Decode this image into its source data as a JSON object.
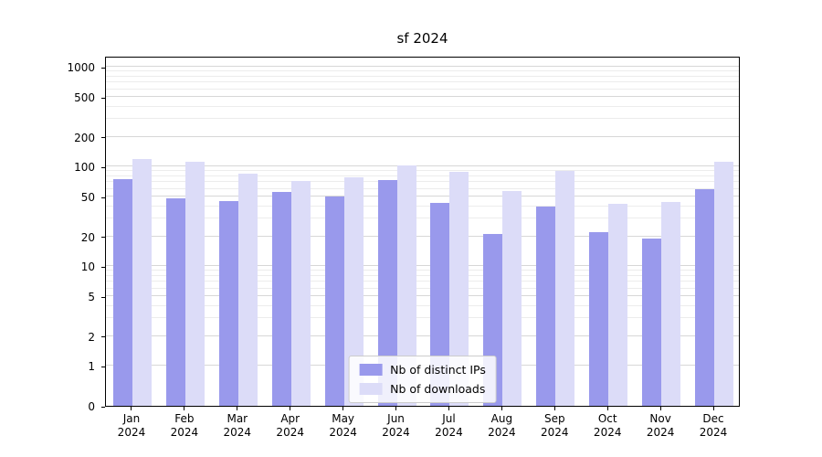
{
  "title": "sf 2024",
  "chart_data": {
    "type": "bar",
    "title": "sf 2024",
    "categories": [
      "Jan",
      "Feb",
      "Mar",
      "Apr",
      "May",
      "Jun",
      "Jul",
      "Aug",
      "Sep",
      "Oct",
      "Nov",
      "Dec"
    ],
    "year_label": "2024",
    "series": [
      {
        "name": "Nb of distinct IPs",
        "color": "#9999ec",
        "values": [
          75,
          48,
          45,
          56,
          50,
          73,
          43,
          21,
          40,
          22,
          19,
          60
        ]
      },
      {
        "name": "Nb of downloads",
        "color": "#dcdcf8",
        "values": [
          120,
          112,
          85,
          72,
          78,
          103,
          88,
          57,
          90,
          42,
          44,
          112
        ]
      }
    ],
    "yscale": "symlog",
    "ylim": [
      0,
      1300
    ],
    "yticks": [
      0,
      1,
      2,
      5,
      10,
      20,
      50,
      100,
      200,
      500,
      1000
    ],
    "grid": true,
    "legend_position": "lower center"
  },
  "colors": {
    "major_grid": "#d7d7d7",
    "minor_grid": "#ececec",
    "axis": "#000000",
    "background": "#ffffff"
  }
}
